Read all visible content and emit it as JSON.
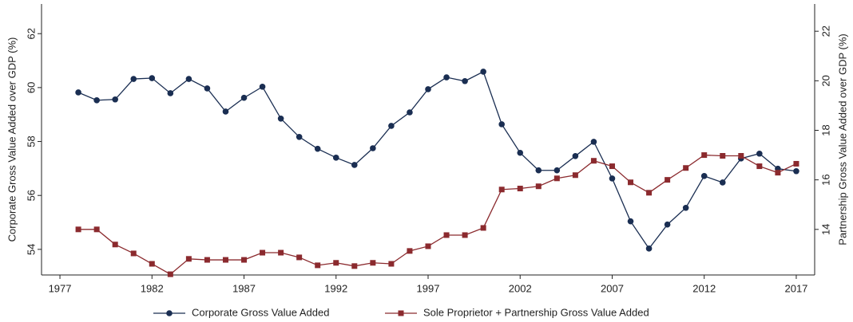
{
  "chart_data": {
    "type": "line",
    "x": [
      1978,
      1979,
      1980,
      1981,
      1982,
      1983,
      1984,
      1985,
      1986,
      1987,
      1988,
      1989,
      1990,
      1991,
      1992,
      1993,
      1994,
      1995,
      1996,
      1997,
      1998,
      1999,
      2000,
      2001,
      2002,
      2003,
      2004,
      2005,
      2006,
      2007,
      2008,
      2009,
      2010,
      2011,
      2012,
      2013,
      2014,
      2015,
      2016,
      2017
    ],
    "series": [
      {
        "name": "Corporate Gross Value Added",
        "color": "#1a2e52",
        "marker": "circle",
        "values": [
          59.82,
          59.53,
          59.56,
          60.32,
          60.35,
          59.79,
          60.32,
          59.97,
          59.11,
          59.62,
          60.03,
          58.85,
          58.17,
          57.73,
          57.4,
          57.13,
          57.75,
          58.58,
          59.08,
          59.94,
          60.38,
          60.24,
          60.59,
          58.64,
          57.58,
          56.93,
          56.93,
          57.46,
          57.99,
          56.63,
          55.04,
          54.03,
          54.92,
          55.54,
          56.72,
          56.48,
          57.37,
          57.55,
          56.99,
          56.9
        ]
      },
      {
        "name": "Sole Proprietor + Partnership Gross Value Added",
        "color": "#8b2a2e",
        "marker": "square",
        "axis": "y2",
        "values": [
          14.0,
          14.0,
          13.39,
          13.03,
          12.61,
          12.19,
          12.81,
          12.77,
          12.77,
          12.77,
          13.06,
          13.06,
          12.87,
          12.55,
          12.65,
          12.52,
          12.65,
          12.61,
          13.13,
          13.32,
          13.77,
          13.77,
          14.06,
          15.61,
          15.65,
          15.74,
          16.06,
          16.19,
          16.77,
          16.55,
          15.9,
          15.48,
          16.0,
          16.48,
          17.0,
          16.97,
          16.97,
          16.55,
          16.29,
          16.65
        ]
      }
    ],
    "ylabel": "Corporate Gross Value Added over GDP (%)",
    "y2label": "Partnership Gross Value Added over GDP (%)",
    "xlim": [
      1976,
      2018
    ],
    "xticks": [
      1977,
      1982,
      1987,
      1992,
      1997,
      2002,
      2007,
      2012,
      2017
    ],
    "ylim": [
      53.05,
      63.1
    ],
    "yticks": [
      54,
      56,
      58,
      60,
      62
    ],
    "y2lim": [
      12.16,
      23.1
    ],
    "y2ticks": [
      14,
      16,
      18,
      20,
      22
    ],
    "grid": false,
    "legend": "bottom"
  }
}
